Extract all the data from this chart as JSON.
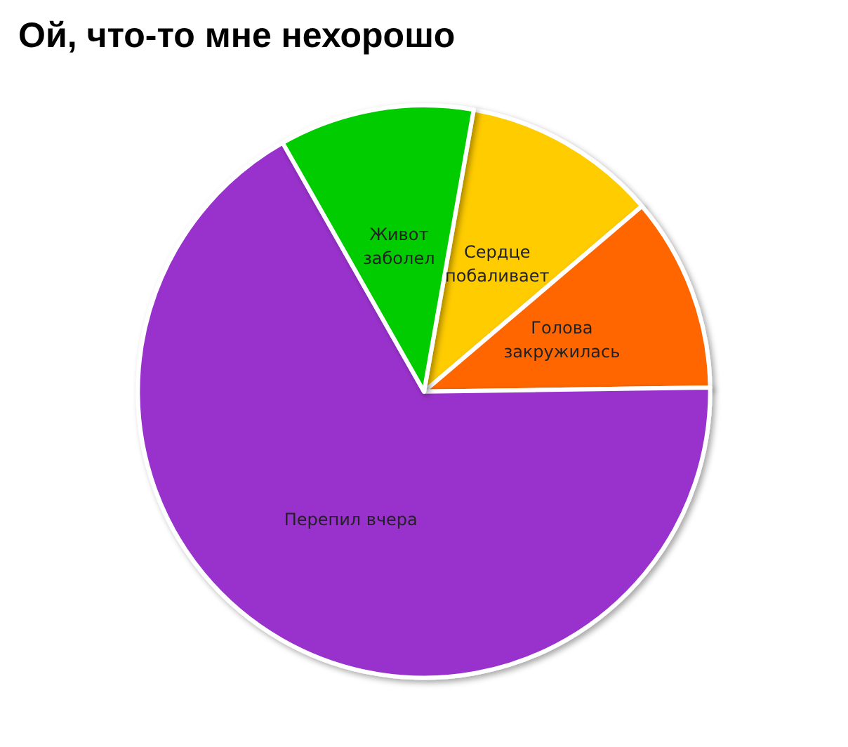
{
  "chart_data": {
    "type": "pie",
    "title": "Ой, что-то мне нехорошо",
    "categories": [
      "Сердце\nпобаливает",
      "Голова\nзакружилась",
      "Перепил вчера",
      "Живот\nзаболел"
    ],
    "values": [
      11,
      11,
      67,
      11
    ],
    "colors": [
      "#ffcc00",
      "#ff6600",
      "#9933cc",
      "#00cc00"
    ]
  }
}
